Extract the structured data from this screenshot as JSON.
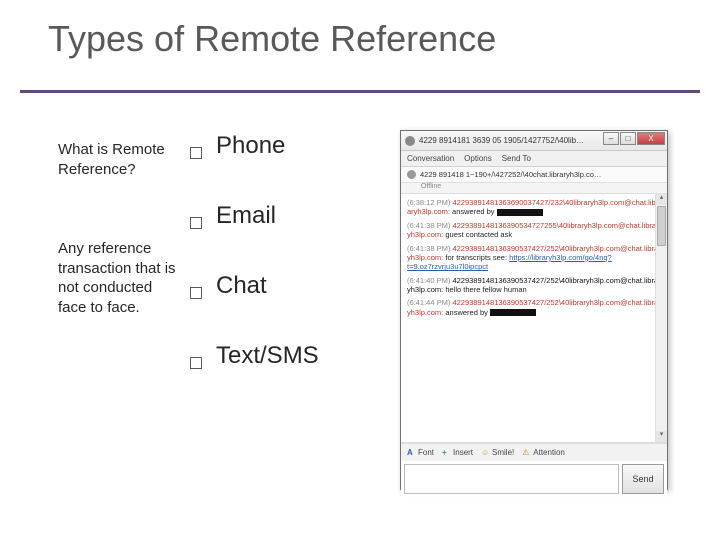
{
  "slide": {
    "title": "Types of Remote Reference",
    "title_color": "#595959",
    "rule_color": "#604a7b",
    "background_color": "#ffffff"
  },
  "left": {
    "question": "What is Remote Reference?",
    "answer": "Any reference transaction that is not conducted face to face."
  },
  "bullets": {
    "items": [
      {
        "label": "Phone"
      },
      {
        "label": "Email"
      },
      {
        "label": "Chat"
      },
      {
        "label": "Text/SMS"
      }
    ],
    "fontsize": 24,
    "marker_border": "#595959"
  },
  "chat": {
    "titlebar": "4229 8914181 3639 05 1905/1427752/\\40lib…",
    "menu": {
      "conversation": "Conversation",
      "options": "Options",
      "sendto": "Send To"
    },
    "idline": "4229 891418 1~190+/\\427252/\\40chat.libraryh3lp.co…",
    "status": "Offline",
    "messages": [
      {
        "ts": "(6:38:12 PM)",
        "id": "42293891481363690037427/232\\40libraryh3lp.com@chat.libraryh3lp.com:",
        "id_color": "#c0392b",
        "text": "answered by",
        "redact": true
      },
      {
        "ts": "(6:41:38 PM)",
        "id": "4229389148136390534727255\\40libraryh3lp.com@chat.libraryh3lp.com:",
        "id_color": "#c0392b",
        "text": "guest contacted ask"
      },
      {
        "ts": "(6:41:38 PM)",
        "id": "4229389148136390537427/252\\40libraryh3lp.com@chat.libraryh3lp.com:",
        "id_color": "#c0392b",
        "text": "for transcripts see:",
        "link": "https://libraryh3lp.com/go/4nq?t=9.oz7rzvrju3u7l0ipcpct"
      },
      {
        "ts": "(6:41:40 PM)",
        "id": "4229389148136390537427/252\\40libraryh3lp.com@chat.libraryh3lp.com:",
        "id_color": "#111111",
        "text": "hello there fellow human"
      },
      {
        "ts": "(6:41:44 PM)",
        "id": "4229389148136390537427/252\\40libraryh3lp.com@chat.libraryh3lp.com:",
        "id_color": "#c0392b",
        "text": "answered by",
        "redact": true
      }
    ],
    "toolbar": {
      "font": "Font",
      "insert": "Insert",
      "smile": "Smile!",
      "attention": "Attention"
    },
    "send": "Send",
    "colors": {
      "window_border": "#707070",
      "body_bg": "#ffffff",
      "ts_color": "#888888",
      "link_color": "#2a5db0",
      "close_bg": "#c34242"
    }
  }
}
